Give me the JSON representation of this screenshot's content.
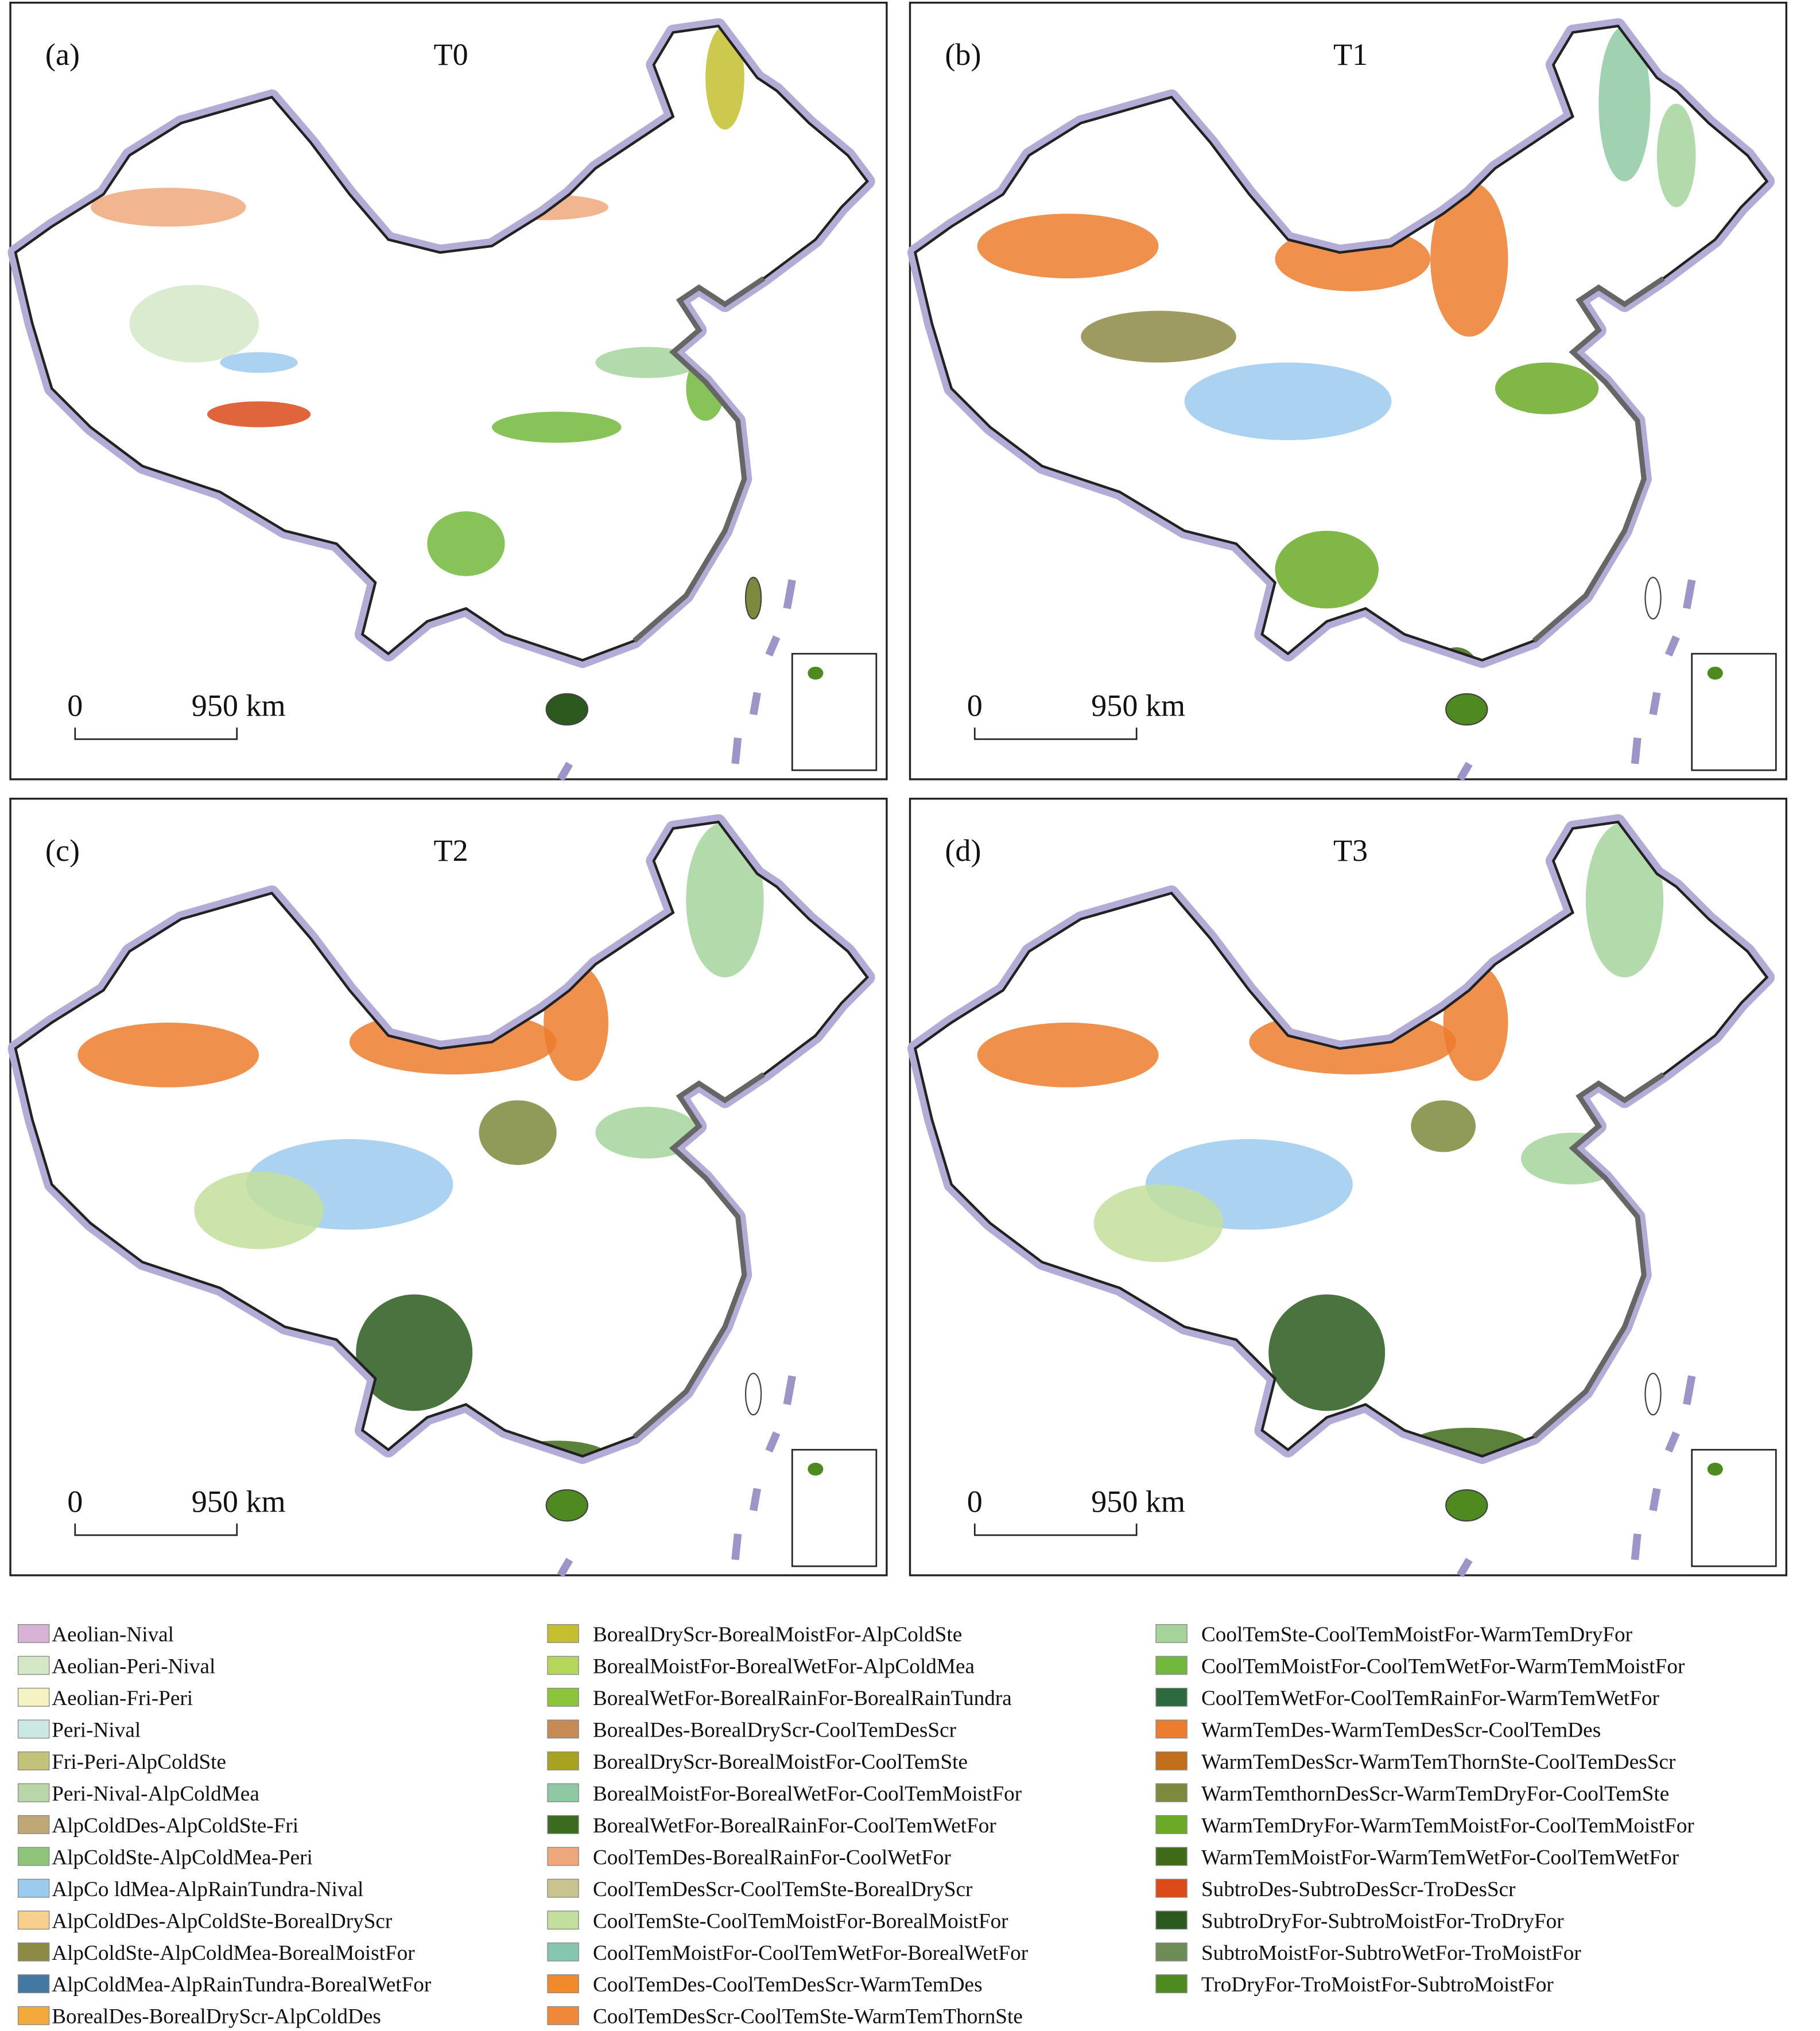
{
  "panels": [
    {
      "label": "(a)",
      "title": "T0",
      "scale_start": "0",
      "scale_end": "950 km"
    },
    {
      "label": "(b)",
      "title": "T1",
      "scale_start": "0",
      "scale_end": "950 km"
    },
    {
      "label": "(c)",
      "title": "T2",
      "scale_start": "0",
      "scale_end": "950 km"
    },
    {
      "label": "(d)",
      "title": "T3",
      "scale_start": "0",
      "scale_end": "950 km"
    }
  ],
  "legend": [
    {
      "name": "Aeolian-Nival",
      "color": "#d9b3d6"
    },
    {
      "name": "Aeolian-Peri-Nival",
      "color": "#d4e8c8"
    },
    {
      "name": "Aeolian-Fri-Peri",
      "color": "#f5f3c4"
    },
    {
      "name": "Peri-Nival",
      "color": "#cbe8e3"
    },
    {
      "name": "Fri-Peri-AlpColdSte",
      "color": "#c2c27a"
    },
    {
      "name": "Peri-Nival-AlpColdMea",
      "color": "#b9d6a8"
    },
    {
      "name": "AlpColdDes-AlpColdSte-Fri",
      "color": "#bfa777"
    },
    {
      "name": "AlpColdSte-AlpColdMea-Peri",
      "color": "#8fc57a"
    },
    {
      "name": "AlpCo ldMea-AlpRainTundra-Nival",
      "color": "#9ccbee"
    },
    {
      "name": "AlpColdDes-AlpColdSte-BorealDryScr",
      "color": "#f7cf8e"
    },
    {
      "name": "AlpColdSte-AlpColdMea-BorealMoistFor",
      "color": "#8c8a45"
    },
    {
      "name": "AlpColdMea-AlpRainTundra-BorealWetFor",
      "color": "#4577a3"
    },
    {
      "name": "BorealDes-BorealDryScr-AlpColdDes",
      "color": "#f3a93c"
    },
    {
      "name": "BorealDryScr-BorealMoistFor-AlpColdSte",
      "color": "#c4bf2f"
    },
    {
      "name": "BorealMoistFor-BorealWetFor-AlpColdMea",
      "color": "#b4d65a"
    },
    {
      "name": "BorealWetFor-BorealRainFor-BorealRainTundra",
      "color": "#8cc43c"
    },
    {
      "name": "BorealDes-BorealDryScr-CoolTemDesScr",
      "color": "#c68b55"
    },
    {
      "name": "BorealDryScr-BorealMoistFor-CoolTemSte",
      "color": "#a7a21f"
    },
    {
      "name": "BorealMoistFor-BorealWetFor-CoolTemMoistFor",
      "color": "#8fc9a3"
    },
    {
      "name": "BorealWetFor-BorealRainFor-CoolTemWetFor",
      "color": "#3a6b1f"
    },
    {
      "name": "CoolTemDes-BorealRainFor-CoolWetFor",
      "color": "#eea87c"
    },
    {
      "name": "CoolTemDesScr-CoolTemSte-BorealDryScr",
      "color": "#c9c48f"
    },
    {
      "name": "CoolTemSte-CoolTemMoistFor-BorealMoistFor",
      "color": "#c3df9d"
    },
    {
      "name": "CoolTemMoistFor-CoolTemWetFor-BorealWetFor",
      "color": "#86c6ae"
    },
    {
      "name": "CoolTemDes-CoolTemDesScr-WarmTemDes",
      "color": "#f08a2a"
    },
    {
      "name": "CoolTemDesScr-CoolTemSte-WarmTemThornSte",
      "color": "#f0883a"
    },
    {
      "name": "CoolTemSte-CoolTemMoistFor-WarmTemDryFor",
      "color": "#a5d39b"
    },
    {
      "name": "CoolTemMoistFor-CoolTemWetFor-WarmTemMoistFor",
      "color": "#72b83c"
    },
    {
      "name": "CoolTemWetFor-CoolTemRainFor-WarmTemWetFor",
      "color": "#2d6a3e"
    },
    {
      "name": "WarmTemDes-WarmTemDesScr-CoolTemDes",
      "color": "#ec7c2e"
    },
    {
      "name": "WarmTemDesScr-WarmTemThornSte-CoolTemDesScr",
      "color": "#c16e1d"
    },
    {
      "name": "WarmTemthornDesScr-WarmTemDryFor-CoolTemSte",
      "color": "#7d8a3d"
    },
    {
      "name": "WarmTemDryFor-WarmTemMoistFor-CoolTemMoistFor",
      "color": "#6aaa26"
    },
    {
      "name": "WarmTemMoistFor-WarmTemWetFor-CoolTemWetFor",
      "color": "#3f6b18"
    },
    {
      "name": "SubtroDes-SubtroDesScr-TroDesScr",
      "color": "#dc4a1a"
    },
    {
      "name": "SubtroDryFor-SubtroMoistFor-TroDryFor",
      "color": "#2c5a1e"
    },
    {
      "name": "SubtroMoistFor-SubtroWetFor-TroMoistFor",
      "color": "#6e8c55"
    },
    {
      "name": "TroDryFor-TroMoistFor-SubtroMoistFor",
      "color": "#4f8a20"
    }
  ]
}
